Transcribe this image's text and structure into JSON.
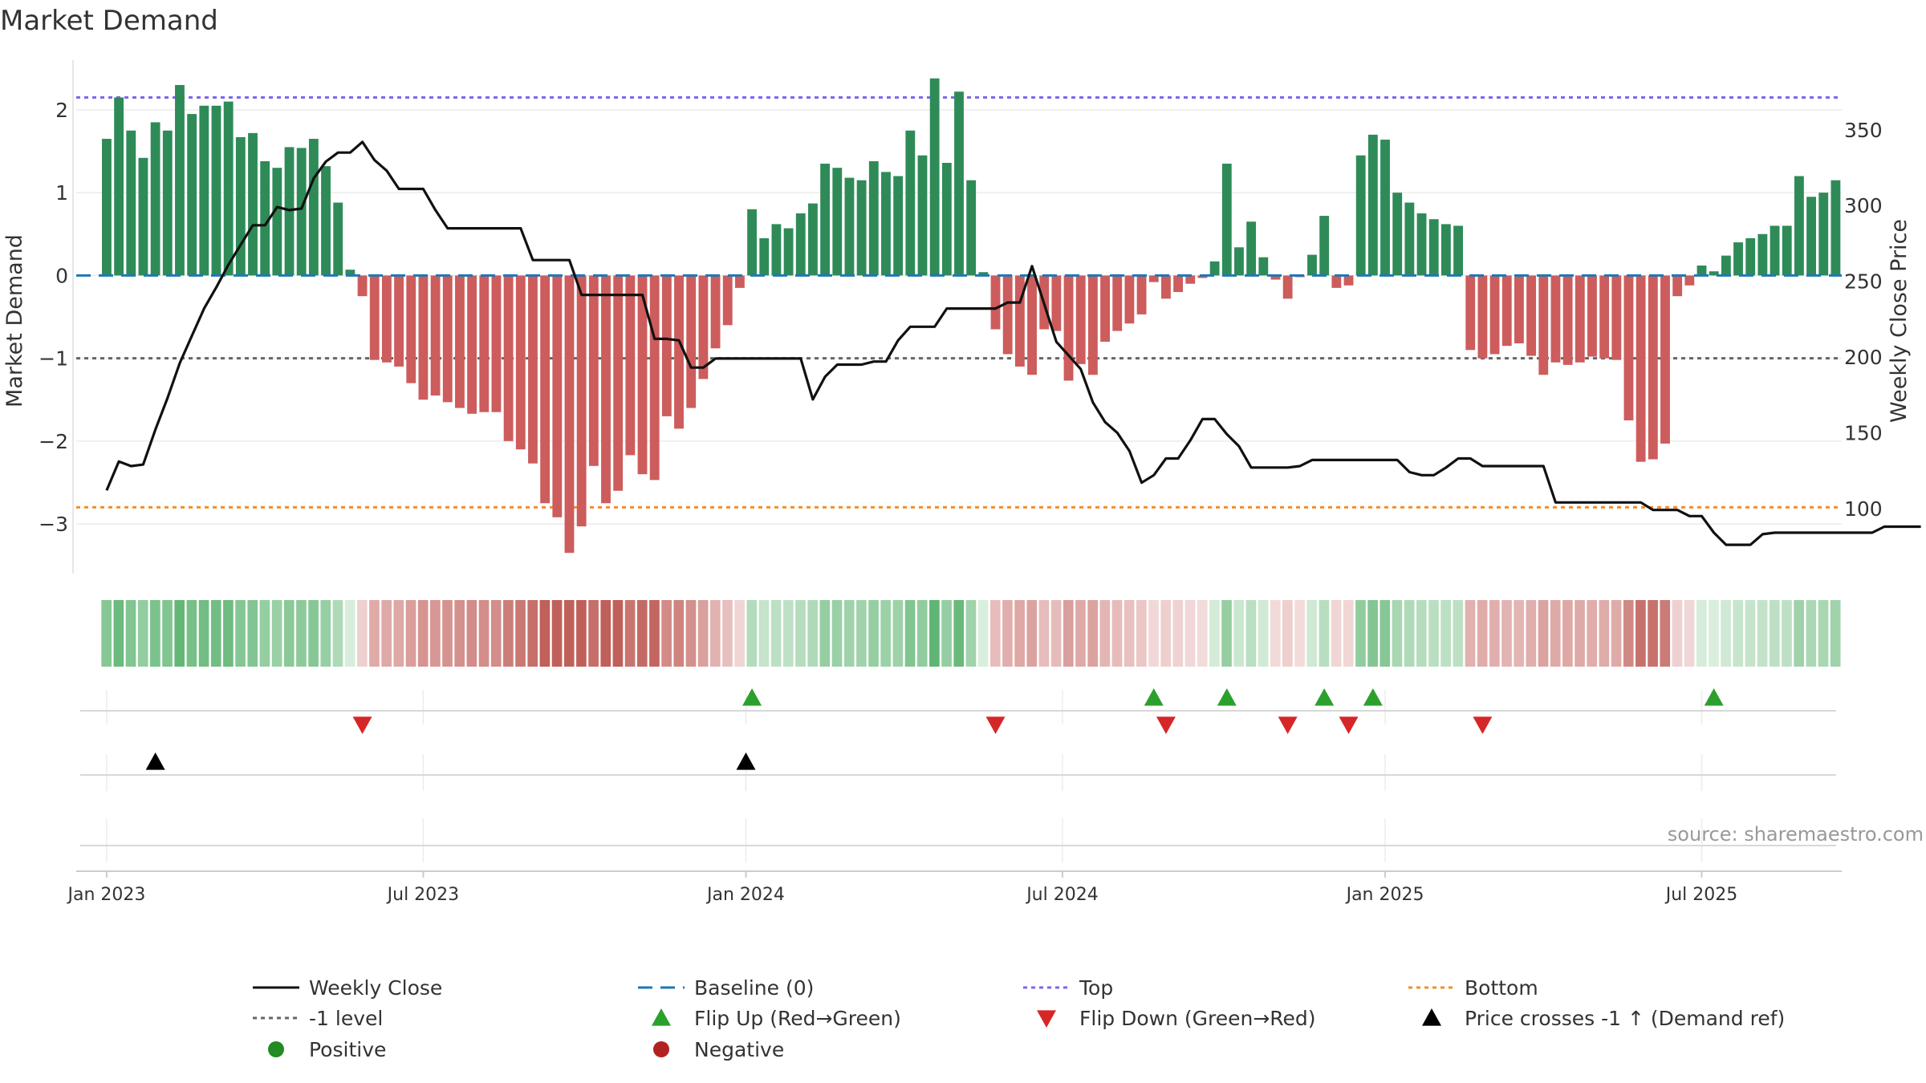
{
  "chart_data": {
    "type": "bar",
    "title": "Market Demand",
    "ylabel": "Market Demand",
    "y2label": "Weekly Close Price",
    "ylim": [
      -3.6,
      2.6
    ],
    "y2lim": [
      57,
      396
    ],
    "yticks": [
      2,
      1,
      0,
      -1,
      -2,
      -3
    ],
    "yticklabels": [
      "2",
      "1",
      "0",
      "−1",
      "−2",
      "−3"
    ],
    "y2ticks": [
      350,
      300,
      250,
      200,
      150,
      100
    ],
    "xrange": [
      -2.5,
      142.5
    ],
    "xticks": [
      {
        "x": 0,
        "label": "Jan 2023"
      },
      {
        "x": 26,
        "label": "Jul 2023"
      },
      {
        "x": 52.5,
        "label": "Jan 2024"
      },
      {
        "x": 78.5,
        "label": "Jul 2024"
      },
      {
        "x": 105,
        "label": "Jan 2025"
      },
      {
        "x": 131,
        "label": "Jul 2025"
      }
    ],
    "reference_lines": {
      "baseline": 0,
      "level": -1,
      "top": 2.15,
      "bottom": -2.8
    },
    "demand": [
      1.65,
      2.15,
      1.75,
      1.42,
      1.85,
      1.75,
      2.3,
      1.95,
      2.05,
      2.05,
      2.1,
      1.67,
      1.72,
      1.38,
      1.3,
      1.55,
      1.54,
      1.65,
      1.32,
      0.88,
      0.07,
      -0.25,
      -1.02,
      -1.05,
      -1.1,
      -1.3,
      -1.5,
      -1.45,
      -1.53,
      -1.6,
      -1.67,
      -1.65,
      -1.65,
      -2.0,
      -2.1,
      -2.27,
      -2.75,
      -2.92,
      -3.35,
      -3.03,
      -2.3,
      -2.75,
      -2.6,
      -2.17,
      -2.4,
      -2.47,
      -1.7,
      -1.85,
      -1.6,
      -1.25,
      -0.88,
      -0.6,
      -0.15,
      0.8,
      0.45,
      0.62,
      0.57,
      0.75,
      0.87,
      1.35,
      1.3,
      1.18,
      1.15,
      1.38,
      1.25,
      1.2,
      1.75,
      1.45,
      2.38,
      1.36,
      2.22,
      1.15,
      0.04,
      -0.65,
      -0.95,
      -1.1,
      -1.2,
      -0.65,
      -0.67,
      -1.27,
      -1.07,
      -1.2,
      -0.8,
      -0.67,
      -0.58,
      -0.47,
      -0.08,
      -0.28,
      -0.2,
      -0.1,
      -0.03,
      0.17,
      1.35,
      0.34,
      0.65,
      0.22,
      -0.05,
      -0.28,
      -0.02,
      0.25,
      0.72,
      -0.15,
      -0.12,
      1.45,
      1.7,
      1.64,
      1.0,
      0.88,
      0.75,
      0.68,
      0.62,
      0.6,
      -0.9,
      -1.0,
      -0.95,
      -0.85,
      -0.82,
      -0.97,
      -1.2,
      -1.05,
      -1.08,
      -1.05,
      -0.98,
      -1.0,
      -1.02,
      -1.75,
      -2.25,
      -2.22,
      -2.03,
      -0.25,
      -0.12,
      0.12,
      0.05,
      0.24,
      0.4,
      0.45,
      0.5,
      0.6,
      0.6,
      1.2,
      0.95,
      1.0,
      1.15
    ],
    "close": [
      112,
      131,
      128,
      129,
      152,
      173,
      196,
      214,
      232,
      246,
      261,
      274,
      287,
      287,
      299,
      297,
      298,
      318,
      329,
      335,
      335,
      342,
      330,
      323,
      311,
      311,
      311,
      297,
      285,
      285,
      285,
      285,
      285,
      285,
      285,
      264,
      264,
      264,
      264,
      241,
      241,
      241,
      241,
      241,
      241,
      212,
      212,
      211,
      193,
      193,
      199,
      199,
      199,
      199,
      199,
      199,
      199,
      199,
      172,
      187,
      195,
      195,
      195,
      197,
      197,
      211,
      220,
      220,
      220,
      232,
      232,
      232,
      232,
      232,
      236,
      236,
      260,
      235,
      210,
      201,
      192,
      170,
      157,
      150,
      138,
      117,
      122,
      133,
      133,
      145,
      159,
      159,
      149,
      141,
      127,
      127,
      127,
      127,
      128,
      132,
      132,
      132,
      132,
      132,
      132,
      132,
      132,
      124,
      122,
      122,
      127,
      133,
      133,
      128,
      128,
      128,
      128,
      128,
      128,
      104,
      104,
      104,
      104,
      104,
      104,
      104,
      104,
      99,
      99,
      99,
      95,
      95,
      84,
      76,
      76,
      76,
      83,
      84,
      84,
      84,
      84,
      84,
      84,
      84,
      84,
      84,
      88,
      88,
      88,
      88
    ],
    "flip_up_weeks": [
      53,
      86,
      92,
      100,
      104,
      132
    ],
    "flip_down_weeks": [
      21,
      73,
      87,
      97,
      102,
      113
    ],
    "price_cross_weeks": [
      4,
      52.5
    ],
    "source": "source: sharemaestro.com",
    "legend": [
      {
        "key": "weekly_close",
        "label": "Weekly Close"
      },
      {
        "key": "baseline",
        "label": "Baseline (0)"
      },
      {
        "key": "top",
        "label": "Top"
      },
      {
        "key": "bottom",
        "label": "Bottom"
      },
      {
        "key": "level",
        "label": "-1 level"
      },
      {
        "key": "flip_up",
        "label": "Flip Up (Red→Green)"
      },
      {
        "key": "flip_down",
        "label": "Flip Down (Green→Red)"
      },
      {
        "key": "price_cross",
        "label": "Price crosses -1 ↑ (Demand ref)"
      },
      {
        "key": "positive",
        "label": "Positive"
      },
      {
        "key": "negative",
        "label": "Negative"
      }
    ],
    "colors": {
      "positive_bar": "#2e8b57",
      "negative_bar": "#cd5c5c",
      "close_line": "#111111",
      "baseline": "#1f77b4",
      "level": "#666666",
      "top": "#7b68ee",
      "bottom": "#f28e2b",
      "flip_up": "#2ca02c",
      "flip_down": "#d62728",
      "price_cross": "#000000",
      "positive_dot": "#228b22",
      "negative_dot": "#b22222"
    }
  }
}
